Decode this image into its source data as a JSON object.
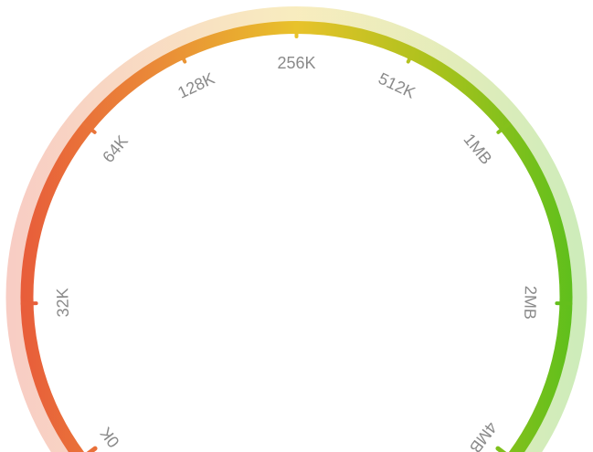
{
  "gauge": {
    "ticks": [
      {
        "label": "0K",
        "position": 0.0
      },
      {
        "label": "32K",
        "position": 0.14
      },
      {
        "label": "64K",
        "position": 0.3
      },
      {
        "label": "128K",
        "position": 0.4
      },
      {
        "label": "256K",
        "position": 0.5
      },
      {
        "label": "512K",
        "position": 0.6
      },
      {
        "label": "1MB",
        "position": 0.7
      },
      {
        "label": "2MB",
        "position": 0.86
      },
      {
        "label": "4MB",
        "position": 1.0
      }
    ],
    "colors": {
      "start": "#e85a3a",
      "quarter": "#ea8a38",
      "middle": "#e8c22a",
      "three_quarter": "#a8c21c",
      "end": "#5bbf1c"
    }
  }
}
